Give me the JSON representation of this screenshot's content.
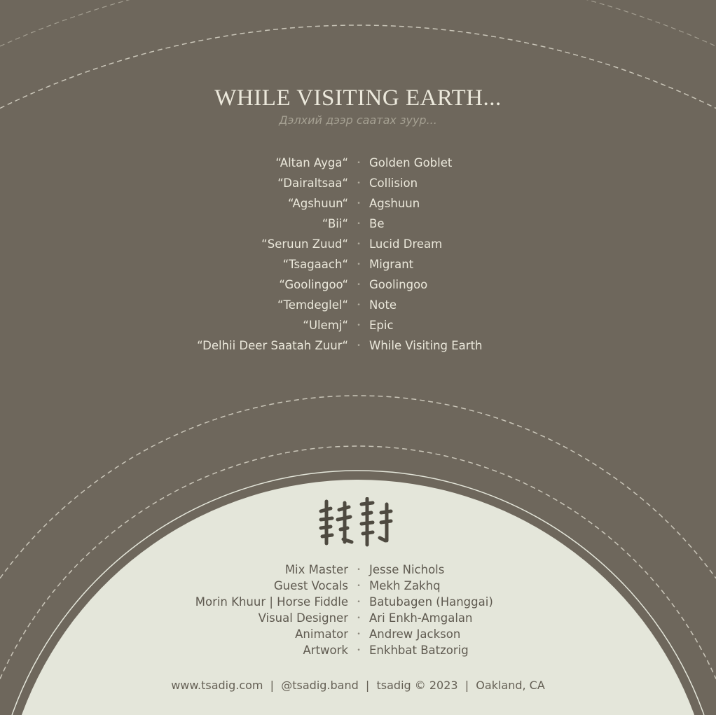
{
  "title": "WHILE VISITING EARTH...",
  "subtitle": "Дэлхий дээр саатах зуур...",
  "tracks": [
    {
      "mongolian": "“Altan Ayga“",
      "english": "Golden Goblet"
    },
    {
      "mongolian": "“Dairaltsaa“",
      "english": "Collision"
    },
    {
      "mongolian": "“Agshuun“",
      "english": "Agshuun"
    },
    {
      "mongolian": "“Bii“",
      "english": "Be"
    },
    {
      "mongolian": "“Seruun Zuud“",
      "english": "Lucid Dream"
    },
    {
      "mongolian": "“Tsagaach“",
      "english": "Migrant"
    },
    {
      "mongolian": "“Goolingoo“",
      "english": "Goolingoo"
    },
    {
      "mongolian": "“Temdeglel“",
      "english": "Note"
    },
    {
      "mongolian": "“Ulemj“",
      "english": "Epic"
    },
    {
      "mongolian": "“Delhii Deer Saatah Zuur“",
      "english": "While Visiting Earth"
    }
  ],
  "separator": "•",
  "credits": [
    {
      "role": "Mix Master",
      "name": "Jesse Nichols"
    },
    {
      "role": "Guest Vocals",
      "name": "Mekh Zakhq"
    },
    {
      "role": "Morin Khuur | Horse Fiddle",
      "name": "Batubagen (Hanggai)"
    },
    {
      "role": "Visual Designer",
      "name": "Ari Enkh-Amgalan"
    },
    {
      "role": "Animator",
      "name": "Andrew Jackson"
    },
    {
      "role": "Artwork",
      "name": "Enkhbat Batzorig"
    }
  ],
  "footer": "www.tsadig.com  |  @tsadig.band  |  tsadig © 2023  |  Oakland, CA",
  "logo": "tsadig (Mongolian script)",
  "colors": {
    "background": "#6e675c",
    "disc": "#e4e6da",
    "text_light": "#ebe8db",
    "text_dark": "#5f5a50"
  }
}
